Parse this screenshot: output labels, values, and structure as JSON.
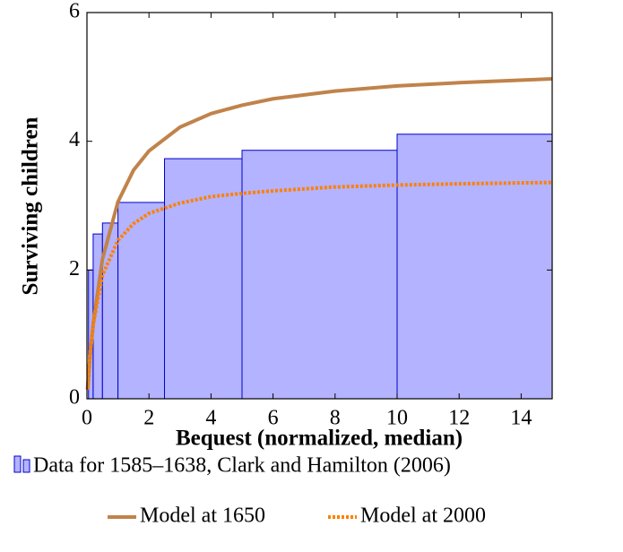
{
  "chart_data": {
    "type": "histogram",
    "xlabel": "Bequest (normalized, median)",
    "ylabel": "Surviving children",
    "xlim": [
      0,
      15
    ],
    "ylim": [
      0,
      6
    ],
    "xticks": [
      0,
      2,
      4,
      6,
      8,
      10,
      12,
      14
    ],
    "yticks": [
      0,
      2,
      4,
      6
    ],
    "histogram": {
      "name": "Data for 1585–1638, Clark and Hamilton (2006)",
      "color": "#b3b3ff",
      "edge_color": "#0000cc",
      "bins": [
        0.05,
        0.2,
        0.5,
        1,
        2.5,
        5,
        10,
        15
      ],
      "values": [
        2.0,
        2.56,
        2.73,
        3.05,
        3.73,
        3.86,
        4.11
      ]
    },
    "x": [
      0.02,
      0.1,
      0.2,
      0.5,
      1,
      1.5,
      2,
      3,
      4,
      5,
      6,
      8,
      10,
      12,
      15
    ],
    "series": [
      {
        "name": "Model at 1650",
        "color": "#c0834a",
        "style": "solid",
        "values": [
          0.14,
          0.65,
          1.16,
          2.17,
          3.06,
          3.55,
          3.85,
          4.22,
          4.43,
          4.56,
          4.66,
          4.78,
          4.86,
          4.91,
          4.97
        ]
      },
      {
        "name": "Model at 2000",
        "color": "#ff8000",
        "style": "dotted",
        "values": [
          0.16,
          0.69,
          1.15,
          1.92,
          2.46,
          2.72,
          2.88,
          3.04,
          3.14,
          3.19,
          3.23,
          3.29,
          3.32,
          3.34,
          3.36
        ]
      }
    ]
  }
}
